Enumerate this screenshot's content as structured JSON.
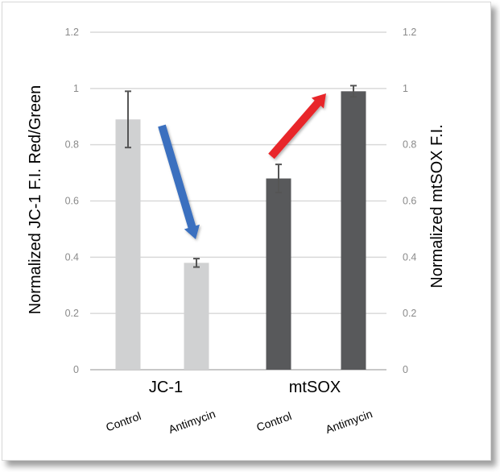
{
  "chart_data": {
    "type": "bar",
    "left_axis": {
      "label": "Normalized JC-1 F.I. Red/Green",
      "ylim": [
        0,
        1.2
      ],
      "ticks": [
        "0",
        "0.2",
        "0.4",
        "0.6",
        "0.8",
        "1",
        "1.2"
      ]
    },
    "right_axis": {
      "label": "Normalized mtSOX F.I.",
      "ylim": [
        0,
        1.2
      ],
      "ticks": [
        "0",
        "0.2",
        "0.4",
        "0.6",
        "0.8",
        "1",
        "1.2"
      ]
    },
    "groups": [
      {
        "label": "JC-1",
        "axis": "left",
        "color": "#d0d1d2",
        "categories": [
          "Control",
          "Antimycin"
        ],
        "values": [
          0.89,
          0.38
        ],
        "errors": [
          0.1,
          0.015
        ]
      },
      {
        "label": "mtSOX",
        "axis": "right",
        "color": "#58595b",
        "categories": [
          "Control",
          "Antimycin"
        ],
        "values": [
          0.68,
          0.99
        ],
        "errors": [
          0.05,
          0.02
        ]
      }
    ],
    "annotations": [
      {
        "type": "arrow",
        "direction": "down",
        "color": "#3a6fbf",
        "group": "JC-1"
      },
      {
        "type": "arrow",
        "direction": "up",
        "color": "#e8282a",
        "group": "mtSOX"
      }
    ],
    "grid": true
  }
}
